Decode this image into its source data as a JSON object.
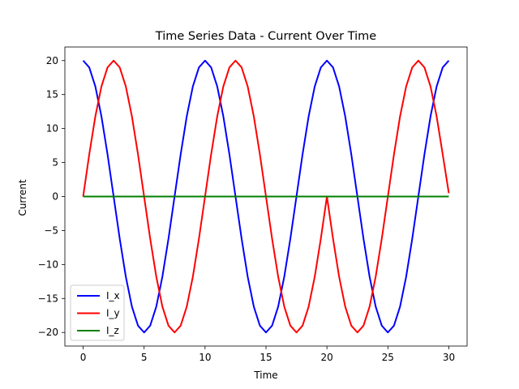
{
  "chart_data": {
    "type": "line",
    "title": "Time Series Data - Current Over Time",
    "xlabel": "Time",
    "ylabel": "Current",
    "xlim": [
      -1.5,
      31.5
    ],
    "ylim": [
      -22,
      22
    ],
    "xticks": [
      0,
      5,
      10,
      15,
      20,
      25,
      30
    ],
    "yticks": [
      -20,
      -15,
      -10,
      -5,
      0,
      5,
      10,
      15,
      20
    ],
    "ytick_labels": [
      "−20",
      "−15",
      "−10",
      "−5",
      "0",
      "5",
      "10",
      "15",
      "20"
    ],
    "grid": false,
    "legend_position": "lower-left",
    "series": [
      {
        "name": "I_x",
        "color": "#0000ff",
        "x": [
          0,
          0.5,
          1,
          1.5,
          2,
          2.5,
          3,
          3.5,
          4,
          4.5,
          5,
          5.5,
          6,
          6.5,
          7,
          7.5,
          8,
          8.5,
          9,
          9.5,
          10,
          10.5,
          11,
          11.5,
          12,
          12.5,
          13,
          13.5,
          14,
          14.5,
          15,
          15.5,
          16,
          16.5,
          17,
          17.5,
          18,
          18.5,
          19,
          19.5,
          20,
          20.5,
          21,
          21.5,
          22,
          22.5,
          23,
          23.5,
          24,
          24.5,
          25,
          25.5,
          26,
          26.5,
          27,
          27.5,
          28,
          28.5,
          29,
          29.5,
          30
        ],
        "y": [
          20,
          19.0,
          16.2,
          11.8,
          6.2,
          0,
          -6.2,
          -11.8,
          -16.2,
          -19.0,
          -20,
          -19.0,
          -16.2,
          -11.8,
          -6.2,
          0,
          6.2,
          11.8,
          16.2,
          19.0,
          20,
          19.0,
          16.2,
          11.8,
          6.2,
          0,
          -6.2,
          -11.8,
          -16.2,
          -19.0,
          -20,
          -19.0,
          -16.2,
          -11.8,
          -6.2,
          0,
          6.2,
          11.8,
          16.2,
          19.0,
          20,
          19.0,
          16.2,
          11.8,
          6.2,
          0,
          -6.2,
          -11.8,
          -16.2,
          -19.0,
          -20,
          -19.0,
          -16.2,
          -11.8,
          -6.2,
          0,
          6.2,
          11.8,
          16.2,
          19.0,
          20
        ]
      },
      {
        "name": "I_y",
        "color": "#ff0000",
        "x": [
          0,
          0.5,
          1,
          1.5,
          2,
          2.5,
          3,
          3.5,
          4,
          4.5,
          5,
          5.5,
          6,
          6.5,
          7,
          7.5,
          8,
          8.5,
          9,
          9.5,
          10,
          10.5,
          11,
          11.5,
          12,
          12.5,
          13,
          13.5,
          14,
          14.5,
          15,
          15.5,
          16,
          16.5,
          17,
          17.5,
          18,
          18.5,
          19,
          19.5,
          20,
          20.5,
          21,
          21.5,
          22,
          22.5,
          23,
          23.5,
          24,
          24.5,
          25,
          25.5,
          26,
          26.5,
          27,
          27.5,
          28,
          28.5,
          29,
          29.5,
          30
        ],
        "y": [
          0,
          6.2,
          11.8,
          16.2,
          19.0,
          20,
          19.0,
          16.2,
          11.8,
          6.2,
          0,
          -6.2,
          -11.8,
          -16.2,
          -19.0,
          -20,
          -19.0,
          -16.2,
          -11.8,
          -6.2,
          0,
          6.2,
          11.8,
          16.2,
          19.0,
          20,
          19.0,
          16.2,
          11.8,
          6.2,
          0,
          -6.2,
          -11.8,
          -16.2,
          -19.0,
          -20,
          -19.0,
          -16.2,
          -11.8,
          -6.2,
          0,
          -6.2,
          -11.8,
          -16.2,
          -19.0,
          -20,
          -19.0,
          -16.2,
          -11.8,
          -6.2,
          0,
          6.2,
          11.8,
          16.2,
          19.0,
          20,
          19.0,
          16.2,
          11.8,
          6.2,
          0.5
        ]
      },
      {
        "name": "I_z",
        "color": "#008000",
        "x": [
          0,
          30
        ],
        "y": [
          0,
          0
        ]
      }
    ]
  }
}
